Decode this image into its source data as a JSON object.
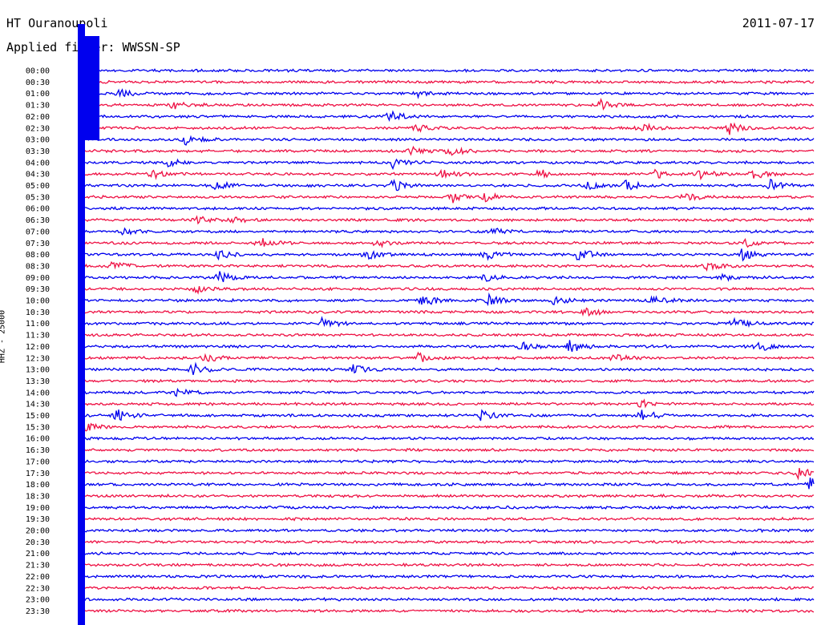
{
  "header": {
    "station": "HT Ouranoupoli",
    "filter": "Applied filter: WWSSN-SP",
    "date": "2011-07-17"
  },
  "side_label": "HHZ - 25000",
  "colors": {
    "trace_a": "#0000ee",
    "trace_b": "#ee1144"
  },
  "chart_data": {
    "type": "line",
    "title": "",
    "xlabel": "",
    "ylabel": "HHZ - 25000",
    "row_labels": [
      "00:00",
      "00:30",
      "01:00",
      "01:30",
      "02:00",
      "02:30",
      "03:00",
      "03:30",
      "04:00",
      "04:30",
      "05:00",
      "05:30",
      "06:00",
      "06:30",
      "07:00",
      "07:30",
      "08:00",
      "08:30",
      "09:00",
      "09:30",
      "10:00",
      "10:30",
      "11:00",
      "11:30",
      "12:00",
      "12:30",
      "13:00",
      "13:30",
      "14:00",
      "14:30",
      "15:00",
      "15:30",
      "16:00",
      "16:30",
      "17:00",
      "17:30",
      "18:00",
      "18:30",
      "19:00",
      "19:30",
      "20:00",
      "20:30",
      "21:00",
      "21:30",
      "22:00",
      "22:30",
      "23:00",
      "23:30"
    ],
    "series": [
      {
        "color_key": "trace_a",
        "rows": "even"
      },
      {
        "color_key": "trace_b",
        "rows": "odd"
      }
    ],
    "x_range_minutes": [
      0,
      30
    ],
    "grid": false,
    "legend": "none"
  }
}
